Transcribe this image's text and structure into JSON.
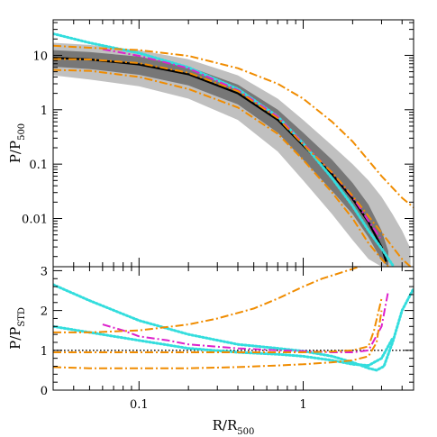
{
  "chart_data": [
    {
      "type": "line",
      "panel": "top",
      "xscale": "log",
      "yscale": "log",
      "xlim": [
        0.03,
        4.7
      ],
      "ylim": [
        0.0013,
        45
      ],
      "ylabel_main": "P/P",
      "ylabel_sub": "500",
      "x_ticks": [
        {
          "v": 0.1,
          "label": "0.1"
        },
        {
          "v": 1,
          "label": "1"
        }
      ],
      "y_ticks": [
        {
          "v": 10,
          "label": "10"
        },
        {
          "v": 1,
          "label": "1"
        },
        {
          "v": 0.1,
          "label": "0.1"
        },
        {
          "v": 0.01,
          "label": "0.01"
        }
      ],
      "bands": [
        {
          "name": "outer-scatter",
          "color": "#c0c0c0",
          "x": [
            0.03,
            0.05,
            0.1,
            0.2,
            0.4,
            0.7,
            1.0,
            1.5,
            2.0,
            2.5,
            3.0,
            3.5,
            4.0,
            4.5
          ],
          "lo": [
            4.3,
            3.6,
            2.7,
            1.6,
            0.65,
            0.17,
            0.05,
            0.012,
            0.004,
            0.0018,
            0.0013,
            0.0013,
            0.0013,
            0.0013
          ],
          "hi": [
            17,
            15.5,
            12.5,
            8.5,
            4.3,
            1.6,
            0.65,
            0.22,
            0.1,
            0.05,
            0.025,
            0.012,
            0.006,
            0.0028
          ]
        },
        {
          "name": "inner-scatter",
          "color": "#777777",
          "x": [
            0.03,
            0.05,
            0.1,
            0.2,
            0.4,
            0.7,
            1.0,
            1.5,
            2.0,
            2.5,
            3.0,
            3.3
          ],
          "lo": [
            6.2,
            5.6,
            4.4,
            2.8,
            1.25,
            0.38,
            0.12,
            0.032,
            0.012,
            0.0045,
            0.0017,
            0.0013
          ],
          "hi": [
            12.5,
            11.5,
            9.5,
            6.2,
            2.9,
            1.0,
            0.38,
            0.12,
            0.045,
            0.018,
            0.006,
            0.0025
          ]
        }
      ],
      "series": [
        {
          "color": "#000000",
          "style": "solid",
          "x": [
            0.03,
            0.05,
            0.1,
            0.2,
            0.4,
            0.7,
            1.0,
            1.5,
            2.0,
            2.5,
            3.0,
            3.2
          ],
          "y": [
            9.0,
            8.4,
            6.8,
            4.5,
            2.0,
            0.65,
            0.22,
            0.065,
            0.023,
            0.0085,
            0.003,
            0.0016
          ]
        },
        {
          "color": "#33dddd",
          "style": "dotted",
          "x": [
            0.03,
            0.05,
            0.1,
            0.2,
            0.4,
            0.7,
            1.0,
            1.5,
            2.0,
            2.5,
            3.0,
            3.5
          ],
          "y": [
            25,
            17,
            11,
            6.0,
            2.4,
            0.75,
            0.24,
            0.055,
            0.017,
            0.006,
            0.0028,
            0.0014
          ]
        },
        {
          "color": "#dd22cc",
          "style": "dashdot",
          "x": [
            0.06,
            0.1,
            0.2,
            0.4,
            0.7,
            1.0,
            1.5,
            2.0,
            2.5,
            3.0
          ],
          "y": [
            13,
            9.8,
            5.8,
            2.3,
            0.75,
            0.24,
            0.07,
            0.025,
            0.009,
            0.004
          ]
        },
        {
          "color": "#f08c00",
          "style": "dashdot",
          "x": [
            0.03,
            0.05,
            0.1,
            0.2,
            0.4,
            0.7,
            1.0,
            1.5,
            2.0,
            3.0,
            4.0,
            4.7
          ],
          "y": [
            15,
            13.8,
            12.5,
            9.8,
            5.8,
            3.0,
            1.6,
            0.6,
            0.26,
            0.06,
            0.024,
            0.016
          ]
        },
        {
          "color": "#f08c00",
          "style": "dashdot",
          "x": [
            0.03,
            0.05,
            0.1,
            0.2,
            0.4,
            0.7,
            1.0,
            1.5,
            2.0,
            2.5,
            3.0,
            3.3
          ],
          "y": [
            5.4,
            5.2,
            4.0,
            2.4,
            1.1,
            0.36,
            0.12,
            0.03,
            0.01,
            0.0035,
            0.0018,
            0.0013
          ]
        },
        {
          "color": "#f08c00",
          "style": "dashdot",
          "x": [
            0.03,
            0.05,
            0.1,
            0.2,
            0.4,
            0.7,
            1.0,
            1.5,
            2.0,
            2.5,
            3.0,
            3.5,
            4.0,
            4.5
          ],
          "y": [
            8.6,
            8.4,
            7.2,
            4.8,
            2.2,
            0.7,
            0.23,
            0.07,
            0.026,
            0.011,
            0.0055,
            0.003,
            0.0018,
            0.0013
          ]
        }
      ]
    },
    {
      "type": "line",
      "panel": "bottom",
      "xscale": "log",
      "yscale": "linear",
      "xlim": [
        0.03,
        4.7
      ],
      "ylim": [
        0,
        3.1
      ],
      "xlabel_main": "R/R",
      "xlabel_sub": "500",
      "ylabel_main": "P/P",
      "ylabel_sub": "STD",
      "x_ticks": [
        {
          "v": 0.1,
          "label": "0.1"
        },
        {
          "v": 1,
          "label": "1"
        }
      ],
      "y_ticks": [
        {
          "v": 0,
          "label": "0"
        },
        {
          "v": 1,
          "label": "1"
        },
        {
          "v": 2,
          "label": "2"
        },
        {
          "v": 3,
          "label": "3"
        }
      ],
      "reference": {
        "y": 1,
        "color": "#000000",
        "style": "dotted"
      },
      "series": [
        {
          "color": "#33dddd",
          "style": "dotted",
          "x": [
            0.03,
            0.05,
            0.1,
            0.2,
            0.4,
            0.7,
            1.0,
            1.5,
            2.0,
            2.5,
            2.8,
            3.1,
            3.5,
            4.0,
            4.7
          ],
          "y": [
            2.65,
            2.25,
            1.75,
            1.4,
            1.15,
            1.05,
            0.98,
            0.85,
            0.7,
            0.55,
            0.5,
            0.6,
            1.2,
            2.0,
            2.55
          ]
        },
        {
          "color": "#33dddd",
          "style": "dotted",
          "x": [
            0.03,
            0.05,
            0.1,
            0.2,
            0.4,
            0.7,
            1.0,
            1.5,
            2.0,
            2.5,
            3.0,
            3.5
          ],
          "y": [
            1.6,
            1.45,
            1.25,
            1.05,
            0.95,
            0.9,
            0.85,
            0.75,
            0.65,
            0.62,
            0.8,
            1.3
          ]
        },
        {
          "color": "#dd22cc",
          "style": "dashdot",
          "x": [
            0.06,
            0.08,
            0.1,
            0.15,
            0.2,
            0.4,
            0.7,
            1.0,
            1.5,
            2.0,
            2.5,
            3.0,
            3.3
          ],
          "y": [
            1.65,
            1.5,
            1.35,
            1.25,
            1.15,
            1.05,
            1.0,
            0.98,
            0.95,
            0.95,
            1.0,
            1.6,
            2.5
          ]
        },
        {
          "color": "#f08c00",
          "style": "dashdot",
          "x": [
            0.03,
            0.05,
            0.1,
            0.2,
            0.3,
            0.5,
            0.7,
            1.0,
            1.3,
            1.7,
            2.2,
            2.8
          ],
          "y": [
            1.45,
            1.45,
            1.5,
            1.65,
            1.8,
            2.05,
            2.3,
            2.6,
            2.8,
            2.95,
            3.1,
            3.25
          ]
        },
        {
          "color": "#f08c00",
          "style": "dashdot",
          "x": [
            0.03,
            0.05,
            0.1,
            0.2,
            0.4,
            0.7,
            1.0,
            1.5,
            2.0,
            2.5,
            2.8,
            3.0
          ],
          "y": [
            0.58,
            0.55,
            0.55,
            0.55,
            0.58,
            0.62,
            0.65,
            0.7,
            0.75,
            0.85,
            1.2,
            2.0
          ]
        },
        {
          "color": "#f08c00",
          "style": "dashdot",
          "x": [
            0.03,
            0.05,
            0.1,
            0.2,
            0.4,
            0.7,
            1.0,
            1.5,
            2.0,
            2.5,
            2.7,
            3.0
          ],
          "y": [
            0.95,
            0.95,
            0.95,
            0.95,
            0.95,
            0.95,
            0.95,
            0.97,
            1.0,
            1.1,
            1.5,
            2.3
          ]
        }
      ]
    }
  ]
}
